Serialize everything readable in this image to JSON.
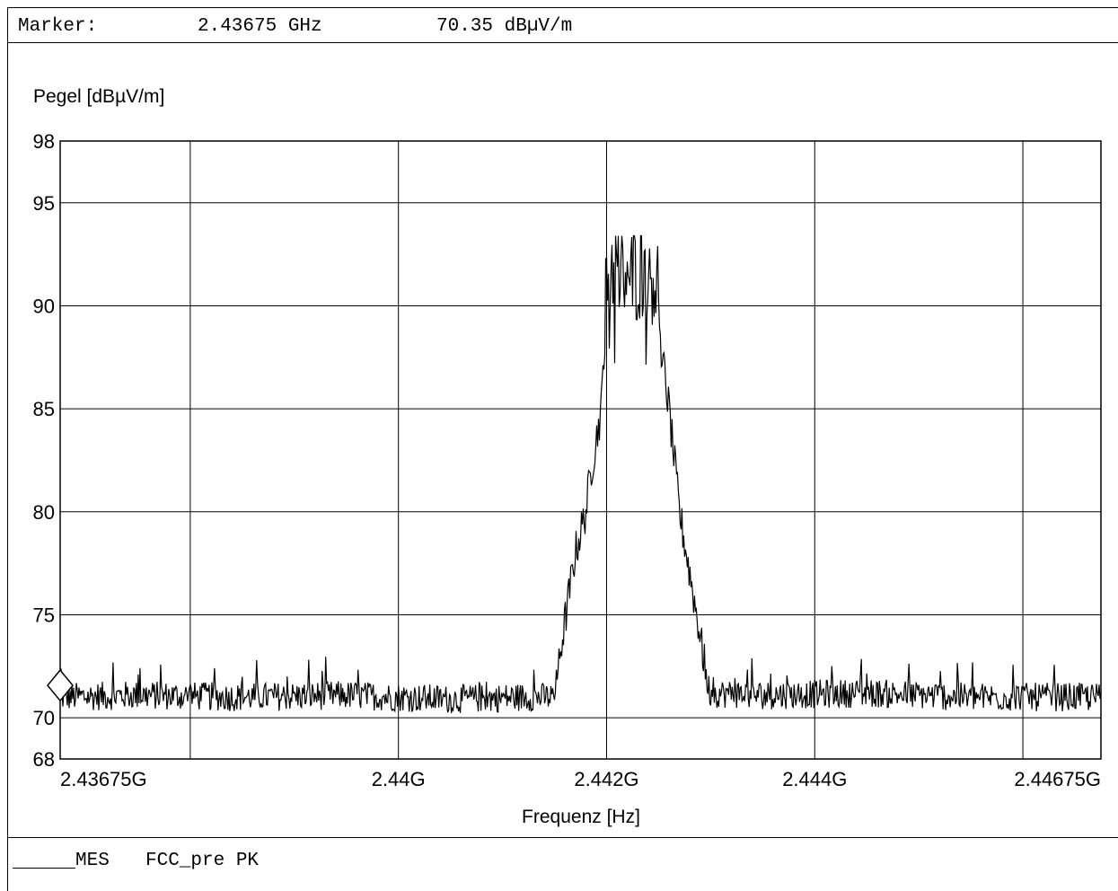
{
  "marker": {
    "label": "Marker:",
    "frequency": "2.43675 GHz",
    "level": "70.35 dBµV/m"
  },
  "legend": {
    "trace": "MES",
    "name": "FCC_pre PK"
  },
  "chart_data": {
    "type": "line",
    "ylabel": "Pegel [dBµV/m]",
    "xlabel": "Frequenz [Hz]",
    "ylim": [
      68,
      98
    ],
    "xlim": [
      2.43675,
      2.44675
    ],
    "x_unit": "GHz",
    "yticks": [
      {
        "value": 68,
        "label": "68"
      },
      {
        "value": 70,
        "label": "70"
      },
      {
        "value": 75,
        "label": "75"
      },
      {
        "value": 80,
        "label": "80"
      },
      {
        "value": 85,
        "label": "85"
      },
      {
        "value": 90,
        "label": "90"
      },
      {
        "value": 95,
        "label": "95"
      },
      {
        "value": 98,
        "label": "98"
      }
    ],
    "xticks": [
      {
        "value": 2.43675,
        "label": "2.43675G"
      },
      {
        "value": 2.44,
        "label": "2.44G"
      },
      {
        "value": 2.442,
        "label": "2.442G"
      },
      {
        "value": 2.444,
        "label": "2.444G"
      },
      {
        "value": 2.44675,
        "label": "2.44675G"
      }
    ],
    "xgrid": [
      2.43675,
      2.438,
      2.44,
      2.442,
      2.444,
      2.446,
      2.44675
    ],
    "ygrid": [
      70,
      75,
      80,
      85,
      90,
      95,
      98
    ],
    "grid": true,
    "marker_point": {
      "x": 2.43675,
      "y": 70.35
    },
    "series": [
      {
        "x": [
          2.43675,
          2.4375,
          2.4385,
          2.4395,
          2.4405,
          2.4412,
          2.4415,
          2.44155,
          2.4417,
          2.4418,
          2.44185,
          2.44195,
          2.442,
          2.44205,
          2.4422,
          2.4424,
          2.4425,
          2.44255,
          2.4426,
          2.4427,
          2.4428,
          2.4429,
          2.44295,
          2.443,
          2.4435,
          2.4445,
          2.4455,
          2.44675
        ],
        "y": [
          71.0,
          71.1,
          71.0,
          71.1,
          70.9,
          71.0,
          71.0,
          73.0,
          78.0,
          80.0,
          82.0,
          85.0,
          91.0,
          92.0,
          91.5,
          92.0,
          91.0,
          87.0,
          85.0,
          80.0,
          77.0,
          74.0,
          72.0,
          71.2,
          71.1,
          71.2,
          71.0,
          71.0
        ]
      }
    ]
  }
}
